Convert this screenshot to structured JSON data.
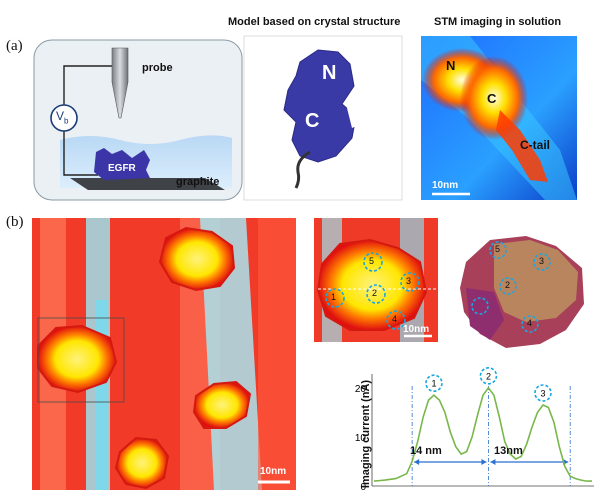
{
  "panel_a": {
    "label": "(a)",
    "schematic": {
      "probe_label": "probe",
      "bias_label": "V",
      "bias_subscript": "b",
      "sample_label": "EGFR",
      "substrate_label": "graphite"
    },
    "model": {
      "header": "Model  based on crystal structure",
      "n_label": "N",
      "c_label": "C"
    },
    "stm": {
      "header": "STM imaging in solution",
      "n_label": "N",
      "c_label": "C",
      "ctail_label": "C-tail",
      "scalebar": "10nm"
    }
  },
  "panel_b": {
    "label": "(b)",
    "large_scalebar": "10nm",
    "zoom_scalebar": "10nm",
    "zoom_markers": [
      "1",
      "2",
      "3",
      "4",
      "5"
    ],
    "model_markers": [
      "2",
      "3",
      "4",
      "5"
    ]
  },
  "chart_data": {
    "type": "line",
    "title": "",
    "xlabel": "",
    "ylabel": "Imaging  current (nA)",
    "ylim": [
      0,
      22
    ],
    "yticks": [
      "0",
      "10",
      "20"
    ],
    "x": [
      0,
      2,
      4,
      6,
      7,
      8,
      9,
      10,
      11,
      12,
      13,
      14,
      15,
      16,
      17,
      18,
      19,
      20,
      21,
      22,
      23,
      24,
      25,
      26,
      27,
      28,
      29,
      30,
      31,
      32,
      33,
      34,
      35,
      36,
      37,
      38,
      39,
      40
    ],
    "series": [
      {
        "values": [
          1.0,
          1.2,
          1.5,
          2.5,
          5,
          9,
          14,
          17.5,
          18.5,
          17.5,
          15,
          11,
          8,
          6.5,
          7,
          10,
          14.5,
          18.5,
          20,
          18.5,
          14,
          9,
          6.5,
          5.5,
          6,
          8.5,
          12,
          15,
          16.5,
          16,
          13,
          8,
          4,
          2,
          1.5,
          1.2,
          1.0,
          1.0
        ]
      }
    ],
    "peak_labels": [
      "1",
      "2",
      "3"
    ],
    "annotations": [
      "14 nm",
      "13nm"
    ]
  }
}
